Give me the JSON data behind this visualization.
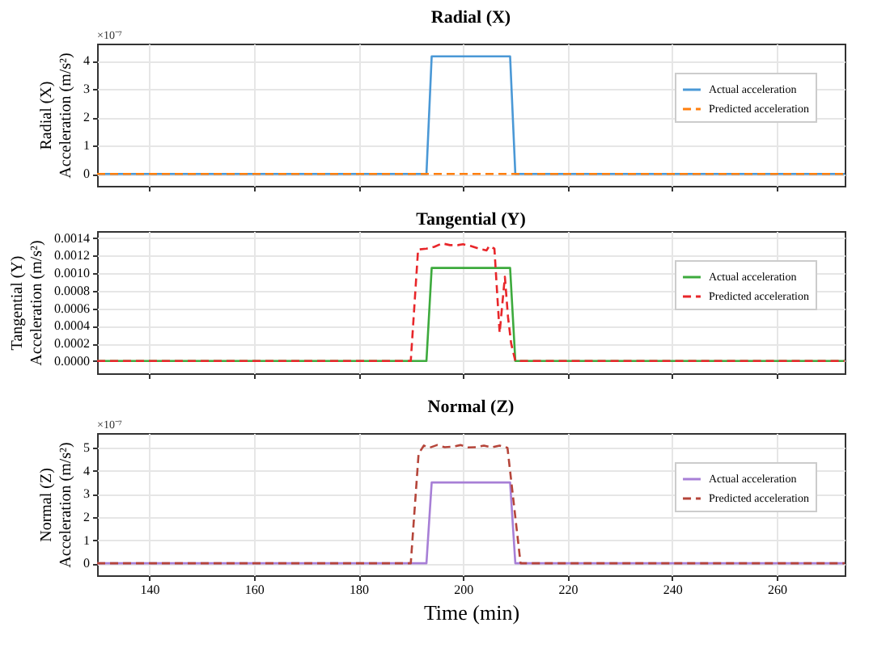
{
  "chart_data": [
    {
      "type": "line",
      "title": "Radial (X)",
      "ylabel": "Radial (X)\nAcceleration (m/s²)",
      "annotations": [
        "×10⁻⁷"
      ],
      "xlim": [
        130,
        273
      ],
      "xticks": [
        140,
        160,
        180,
        200,
        220,
        240,
        260
      ],
      "ylim": [
        -0.42,
        4.6
      ],
      "yticks": [
        0,
        1,
        2,
        3,
        4
      ],
      "grid": true,
      "legend": "top right",
      "tick_labels": "y",
      "series": [
        {
          "name": "Actual acceleration",
          "color": "#4a98d6",
          "line_style": "solid",
          "x": [
            130,
            193,
            194,
            209,
            210,
            273
          ],
          "values": [
            0,
            0,
            4.15,
            4.15,
            0,
            0
          ]
        },
        {
          "name": "Predicted acceleration",
          "color": "#ff7f0e",
          "line_style": "dashed",
          "x": [
            130,
            273
          ],
          "values": [
            0,
            0
          ]
        }
      ]
    },
    {
      "type": "line",
      "title": "Tangential (Y)",
      "ylabel": "Tangential (Y)\nAcceleration (m/s²)",
      "xlim": [
        130,
        273
      ],
      "xticks": [
        140,
        160,
        180,
        200,
        220,
        240,
        260
      ],
      "ylim": [
        -0.00014,
        0.00148
      ],
      "yticks": [
        {
          "value": 0,
          "label": "0.0000"
        },
        {
          "value": 0.0002,
          "label": "0.0002"
        },
        {
          "value": 0.0004,
          "label": "0.0004"
        },
        {
          "value": 0.0006,
          "label": "0.0006"
        },
        {
          "value": 0.0008,
          "label": "0.0008"
        },
        {
          "value": 0.001,
          "label": "0.0010"
        },
        {
          "value": 0.0012,
          "label": "0.0012"
        },
        {
          "value": 0.0014,
          "label": "0.0014"
        }
      ],
      "grid": true,
      "legend": "top right",
      "tick_labels": "y",
      "series": [
        {
          "name": "Actual acceleration",
          "color": "#3daa3d",
          "line_style": "solid",
          "x": [
            130,
            193,
            194,
            209,
            210,
            273
          ],
          "values": [
            0,
            0,
            0.00106,
            0.00106,
            0,
            0
          ]
        },
        {
          "name": "Predicted acceleration",
          "color": "#e8262a",
          "line_style": "dashed",
          "x": [
            130,
            190,
            191.4,
            193,
            194.5,
            196,
            197.5,
            199,
            200,
            201.5,
            203,
            204.5,
            205,
            206,
            206.6,
            207,
            208,
            208.6,
            209.2,
            210,
            273
          ],
          "values": [
            0,
            0,
            0.00127,
            0.00128,
            0.0013,
            0.00134,
            0.00132,
            0.00132,
            0.00133,
            0.00131,
            0.00128,
            0.00126,
            0.00131,
            0.00128,
            0.0007,
            0.00032,
            0.00096,
            0.0005,
            0.0002,
            0,
            0
          ]
        }
      ]
    },
    {
      "type": "line",
      "title": "Normal (Z)",
      "xlabel": "Time (min)",
      "ylabel": "Normal (Z)\nAcceleration (m/s²)",
      "annotations": [
        "×10⁻⁷"
      ],
      "xlim": [
        130,
        273
      ],
      "xticks": [
        140,
        160,
        180,
        200,
        220,
        240,
        260
      ],
      "ylim": [
        -0.52,
        5.64
      ],
      "yticks": [
        0,
        1,
        2,
        3,
        4,
        5
      ],
      "grid": true,
      "legend": "top right",
      "series": [
        {
          "name": "Actual acceleration",
          "color": "#a77fd6",
          "line_style": "solid",
          "x": [
            130,
            193,
            194,
            209,
            210,
            273
          ],
          "values": [
            0,
            0,
            3.5,
            3.5,
            0,
            0
          ]
        },
        {
          "name": "Predicted acceleration",
          "color": "#b5453a",
          "line_style": "dashed",
          "x": [
            130,
            190,
            191.5,
            192.5,
            193.5,
            195,
            196.5,
            198,
            199.5,
            201,
            202.5,
            204,
            205.5,
            207,
            208.5,
            211,
            273
          ],
          "values": [
            0,
            0,
            4.75,
            5.1,
            5.0,
            5.12,
            5.03,
            5.05,
            5.12,
            5.02,
            5.03,
            5.1,
            5.02,
            5.1,
            5.0,
            0,
            0
          ]
        }
      ]
    }
  ]
}
